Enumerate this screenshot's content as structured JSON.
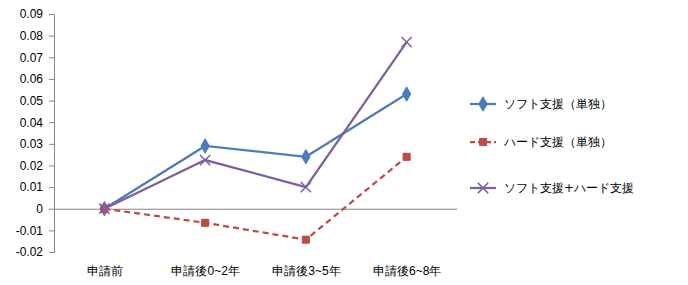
{
  "chart_data": {
    "type": "line",
    "categories": [
      "申請前",
      "申請後0~2年",
      "申請後3~5年",
      "申請後6~8年"
    ],
    "series": [
      {
        "name": "ソフト支援（単独）",
        "color": "#4a7ebb",
        "marker": "diamond",
        "line_style": "solid",
        "values": [
          0,
          0.029,
          0.024,
          0.053
        ]
      },
      {
        "name": "ハード支援（単独）",
        "color": "#be4b48",
        "marker": "square",
        "line_style": "dashed",
        "values": [
          0,
          -0.0065,
          -0.0143,
          0.024
        ]
      },
      {
        "name": "ソフト支援+ハード支援",
        "color": "#7d60a0",
        "marker": "x",
        "line_style": "solid",
        "values": [
          0,
          0.0225,
          0.01,
          0.077
        ]
      }
    ],
    "ylim": [
      -0.02,
      0.09
    ],
    "yticks": [
      -0.02,
      -0.01,
      0,
      0.01,
      0.02,
      0.03,
      0.04,
      0.05,
      0.06,
      0.07,
      0.08,
      0.09
    ],
    "grid": false,
    "legend": "right"
  }
}
